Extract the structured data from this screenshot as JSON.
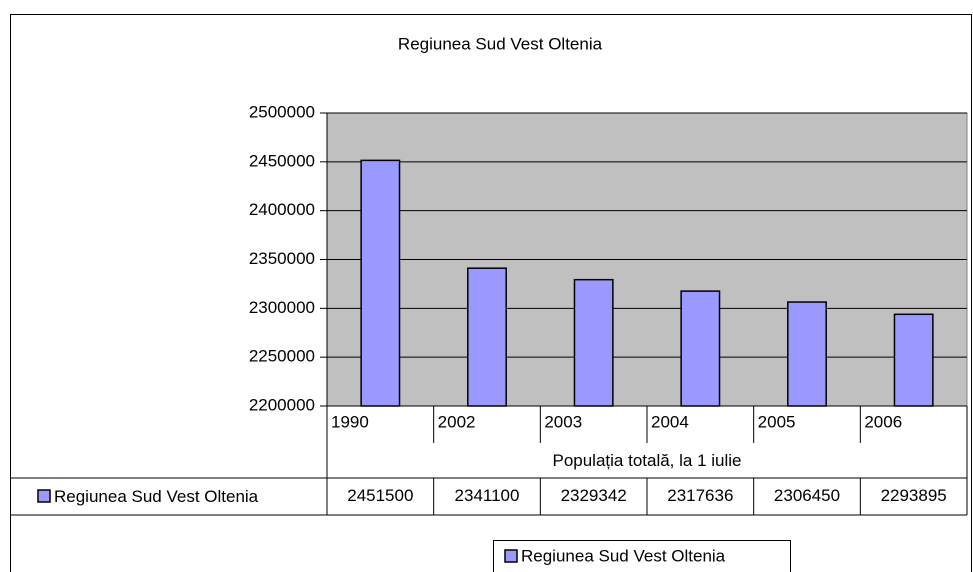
{
  "chart_data": {
    "type": "bar",
    "title": "Regiunea Sud Vest Oltenia",
    "x_label": "Populația totală, la 1 iulie",
    "categories": [
      "1990",
      "2002",
      "2003",
      "2004",
      "2005",
      "2006"
    ],
    "series": [
      {
        "name": "Regiunea Sud Vest Oltenia",
        "color": "#9999ff",
        "values": [
          2451500,
          2341100,
          2329342,
          2317636,
          2306450,
          2293895
        ]
      }
    ],
    "ylim": [
      2200000,
      2500000
    ],
    "yticks": [
      2200000,
      2250000,
      2300000,
      2350000,
      2400000,
      2450000,
      2500000
    ],
    "grid": true,
    "legend": "bottom"
  }
}
